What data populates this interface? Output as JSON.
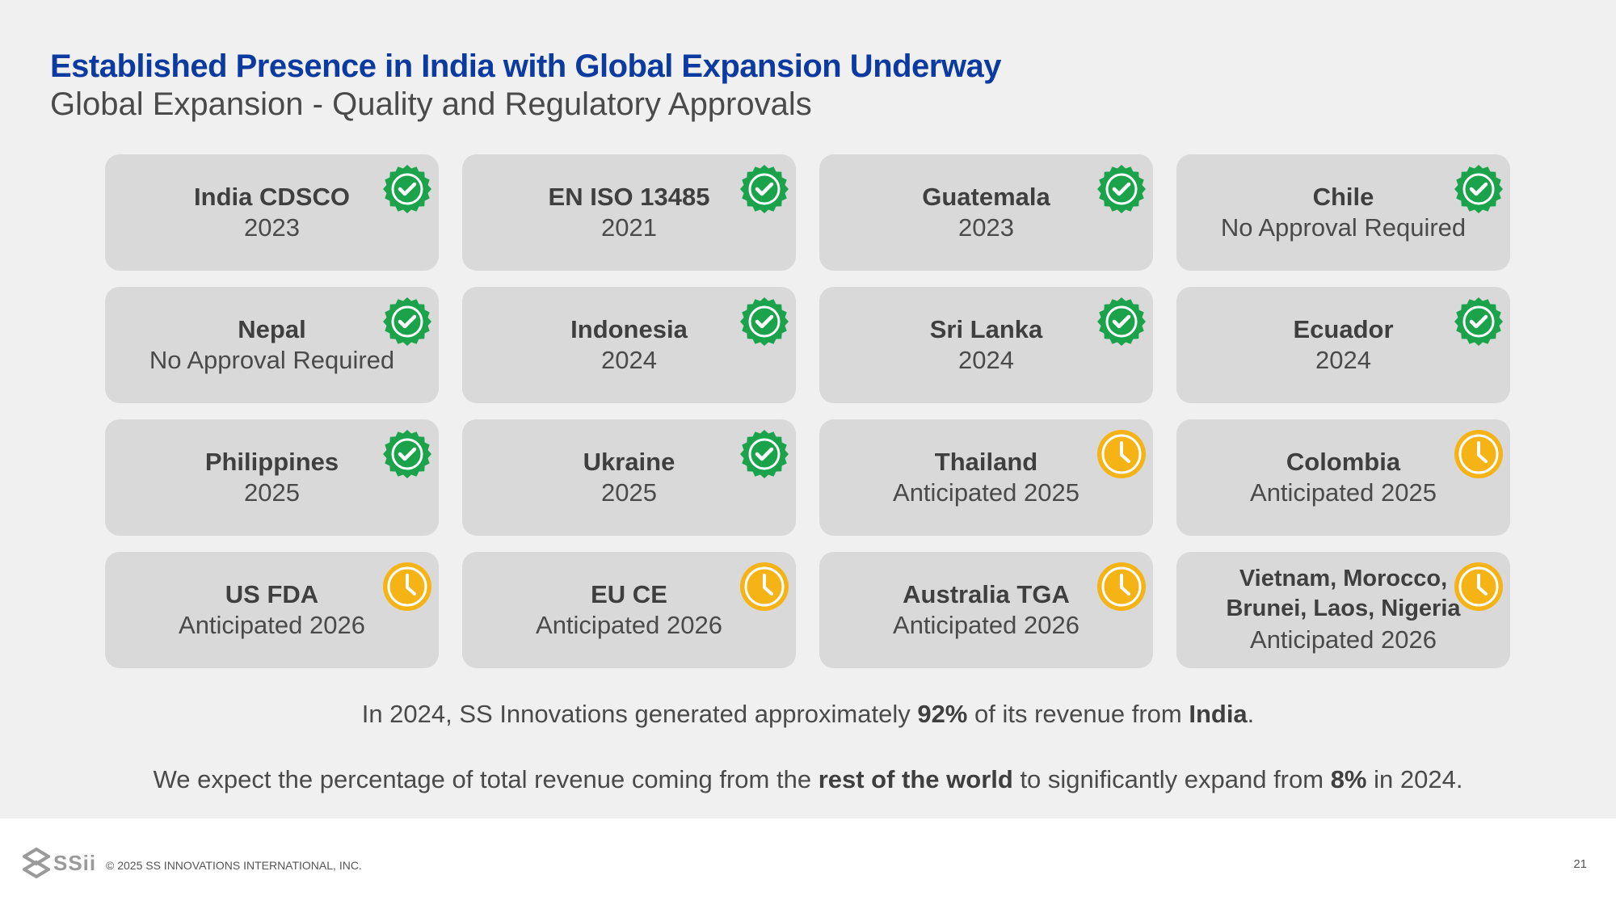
{
  "header": {
    "title": "Established Presence in India with Global Expansion Underway",
    "subtitle": "Global Expansion - Quality and Regulatory Approvals"
  },
  "colors": {
    "approved": "#1aa34a",
    "pending": "#f5b316",
    "title": "#0b3aa0"
  },
  "approvals": [
    {
      "name": "India CDSCO",
      "status": "2023",
      "badge": "approved-check-icon"
    },
    {
      "name": "EN ISO 13485",
      "status": "2021",
      "badge": "approved-check-icon"
    },
    {
      "name": "Guatemala",
      "status": "2023",
      "badge": "approved-check-icon"
    },
    {
      "name": "Chile",
      "status": "No Approval Required",
      "badge": "approved-check-icon"
    },
    {
      "name": "Nepal",
      "status": "No Approval Required",
      "badge": "approved-check-icon"
    },
    {
      "name": "Indonesia",
      "status": "2024",
      "badge": "approved-check-icon"
    },
    {
      "name": "Sri Lanka",
      "status": "2024",
      "badge": "approved-check-icon"
    },
    {
      "name": "Ecuador",
      "status": "2024",
      "badge": "approved-check-icon"
    },
    {
      "name": "Philippines",
      "status": "2025",
      "badge": "approved-check-icon"
    },
    {
      "name": "Ukraine",
      "status": "2025",
      "badge": "approved-check-icon"
    },
    {
      "name": "Thailand",
      "status": "Anticipated 2025",
      "badge": "pending-clock-icon"
    },
    {
      "name": "Colombia",
      "status": "Anticipated 2025",
      "badge": "pending-clock-icon"
    },
    {
      "name": "US FDA",
      "status": "Anticipated 2026",
      "badge": "pending-clock-icon"
    },
    {
      "name": "EU CE",
      "status": "Anticipated 2026",
      "badge": "pending-clock-icon"
    },
    {
      "name": "Australia TGA",
      "status": "Anticipated 2026",
      "badge": "pending-clock-icon"
    },
    {
      "name": "Vietnam, Morocco, Brunei, Laos, Nigeria",
      "status": "Anticipated 2026",
      "badge": "pending-clock-icon"
    }
  ],
  "notes": {
    "line1": {
      "pre": "In 2024, SS Innovations generated approximately ",
      "b1": "92%",
      "mid": " of its revenue from ",
      "b2": "India",
      "post": "."
    },
    "line2": {
      "pre": "We expect the percentage of total revenue coming from the ",
      "b1": "rest of the world",
      "mid": " to significantly expand from ",
      "b2": "8%",
      "post": " in 2024."
    }
  },
  "footer": {
    "logo_text": "SSii",
    "copyright": "© 2025 SS INNOVATIONS INTERNATIONAL, INC.",
    "page_number": "21"
  }
}
